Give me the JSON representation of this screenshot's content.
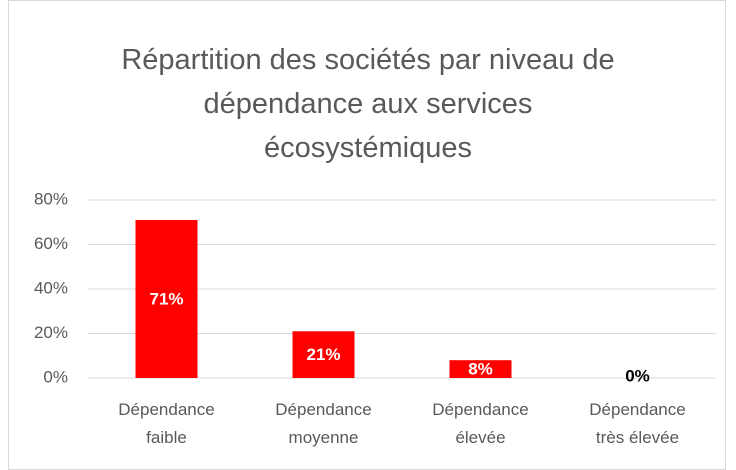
{
  "chart_data": {
    "type": "bar",
    "title": "Répartition des sociétés par niveau de dépendance aux services écosystémiques",
    "categories": [
      "Dépendance faible",
      "Dépendance moyenne",
      "Dépendance élevée",
      "Dépendance très élevée"
    ],
    "values": [
      71,
      21,
      8,
      0
    ],
    "value_labels": [
      "71%",
      "21%",
      "8%",
      "0%"
    ],
    "color": "#ff0000",
    "ylim": [
      0,
      80
    ],
    "yticks": [
      {
        "value": 0,
        "label": "0%"
      },
      {
        "value": 20,
        "label": "20%"
      },
      {
        "value": 40,
        "label": "40%"
      },
      {
        "value": 60,
        "label": "60%"
      },
      {
        "value": 80,
        "label": "80%"
      }
    ],
    "grid": true
  }
}
